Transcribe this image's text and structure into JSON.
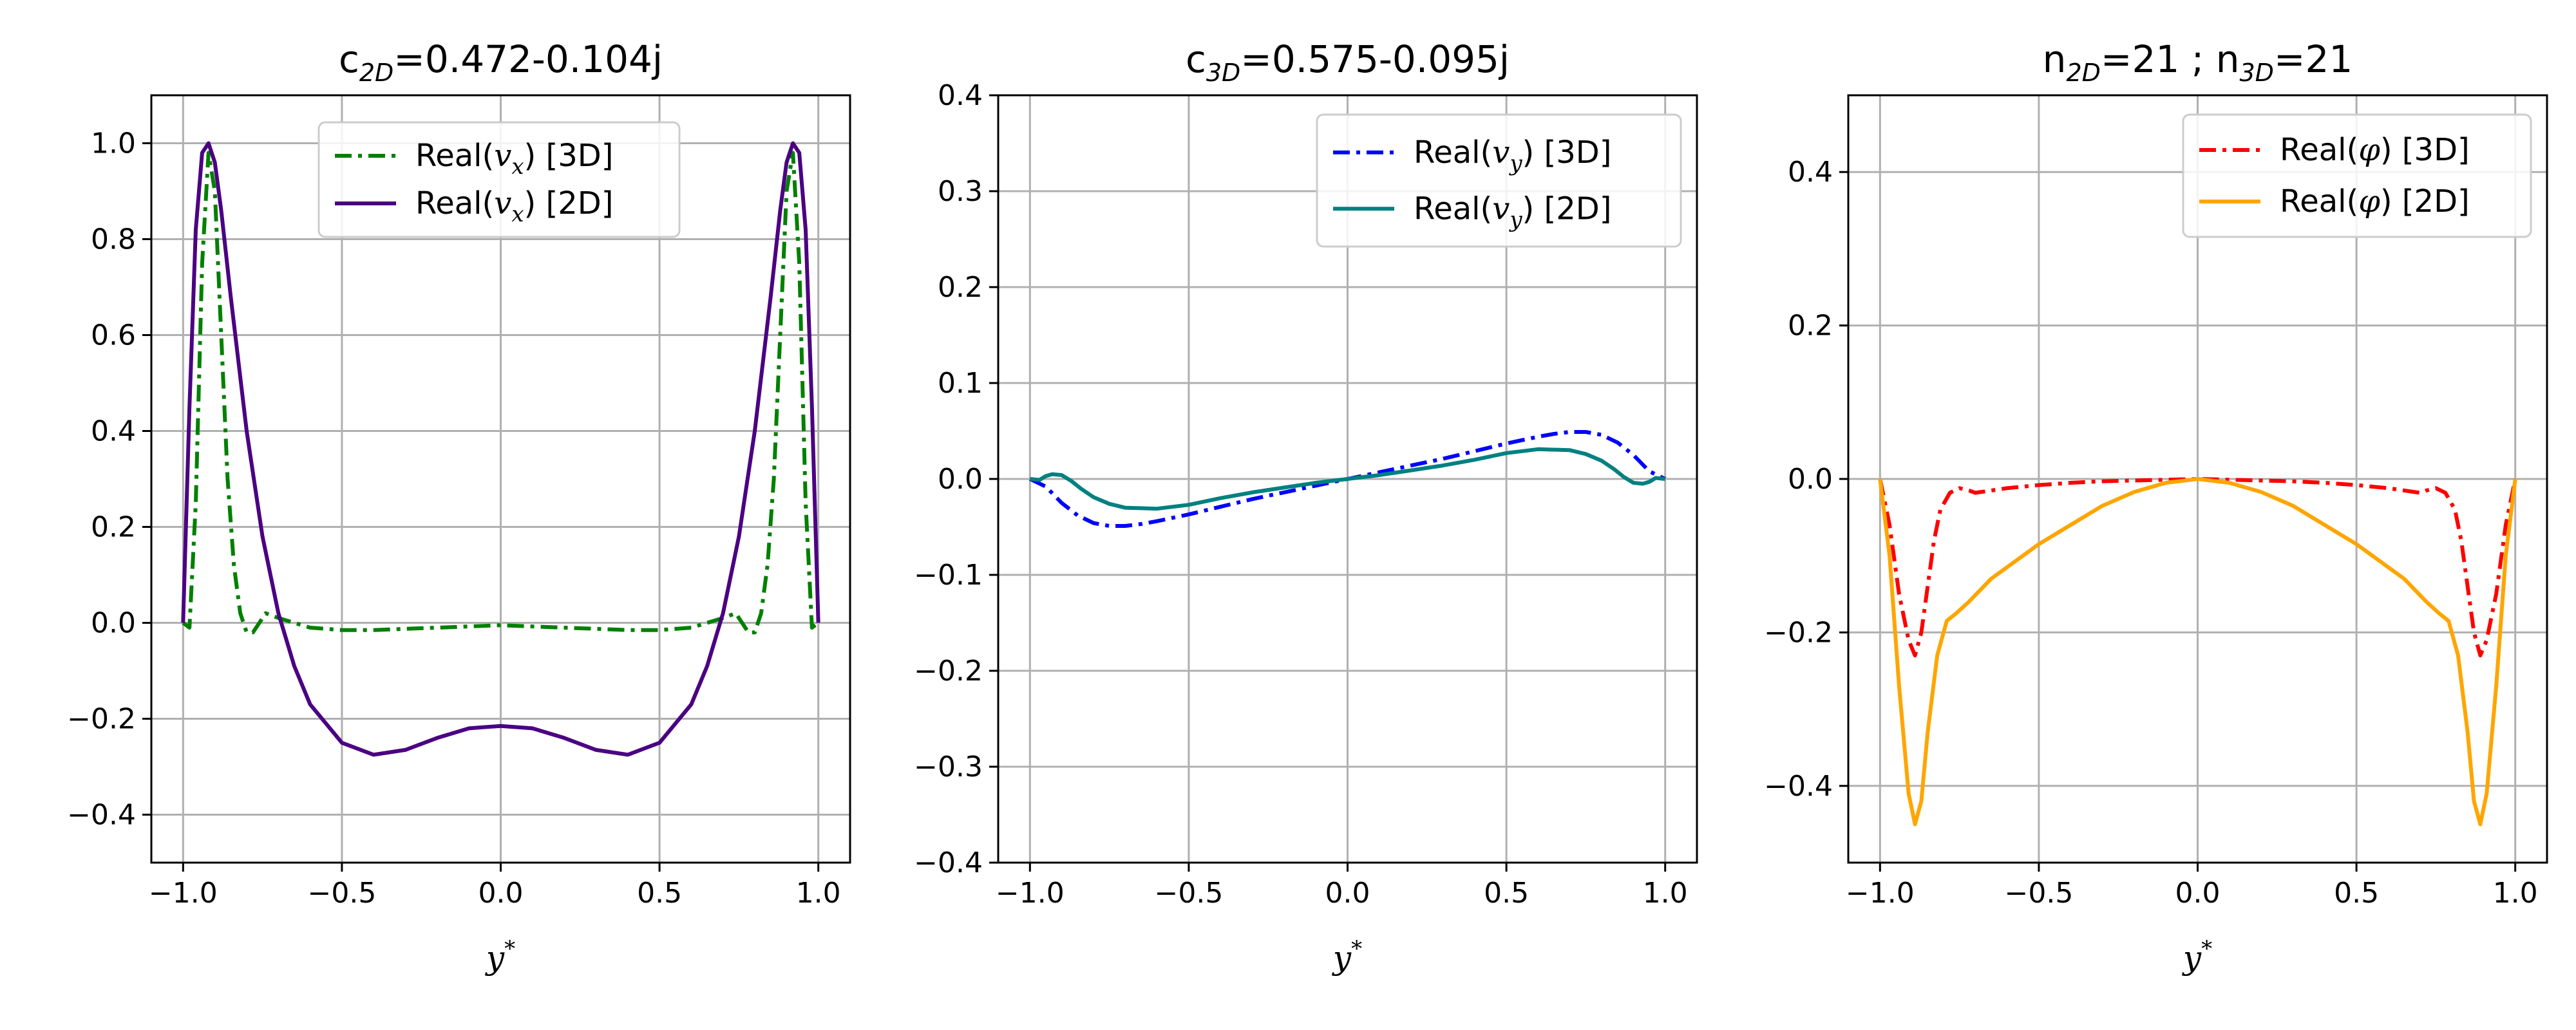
{
  "figure": {
    "background": "#ffffff",
    "grid_color": "#b0b0b0"
  },
  "chart_data": [
    {
      "type": "line",
      "title": {
        "main": "c",
        "sub": "2D",
        "rest": "=0.472-0.104j"
      },
      "xlabel": {
        "main": "y",
        "sup": "*"
      },
      "ylabel": "",
      "xlim": [
        -1.1,
        1.1
      ],
      "ylim": [
        -0.5,
        1.1
      ],
      "xticks": [
        -1.0,
        -0.5,
        0.0,
        0.5,
        1.0
      ],
      "xtick_labels": [
        "−1.0",
        "−0.5",
        "0.0",
        "0.5",
        "1.0"
      ],
      "yticks": [
        -0.4,
        -0.2,
        0.0,
        0.2,
        0.4,
        0.6,
        0.8,
        1.0
      ],
      "ytick_labels": [
        "−0.4",
        "−0.2",
        "0.0",
        "0.2",
        "0.4",
        "0.6",
        "0.8",
        "1.0"
      ],
      "grid": true,
      "legend": "top-center",
      "series": [
        {
          "name": "Real(v̂x) [3D]",
          "legend_base": "Real(",
          "legend_sym": "v",
          "legend_subsym": "x",
          "legend_tail": ") [3D]",
          "color": "#008000",
          "style": "dashdot",
          "x": [
            -1.0,
            -0.98,
            -0.96,
            -0.94,
            -0.92,
            -0.9,
            -0.88,
            -0.86,
            -0.84,
            -0.82,
            -0.8,
            -0.78,
            -0.76,
            -0.74,
            -0.7,
            -0.6,
            -0.5,
            -0.4,
            -0.2,
            0.0,
            0.2,
            0.4,
            0.5,
            0.6,
            0.7,
            0.74,
            0.76,
            0.78,
            0.8,
            0.82,
            0.84,
            0.86,
            0.88,
            0.9,
            0.92,
            0.94,
            0.96,
            0.98,
            1.0
          ],
          "y": [
            0.0,
            -0.01,
            0.25,
            0.75,
            0.98,
            0.9,
            0.6,
            0.3,
            0.12,
            0.02,
            -0.02,
            -0.02,
            0.0,
            0.02,
            0.01,
            -0.01,
            -0.015,
            -0.015,
            -0.01,
            -0.005,
            -0.01,
            -0.015,
            -0.015,
            -0.01,
            0.01,
            0.02,
            0.0,
            -0.02,
            -0.02,
            0.02,
            0.12,
            0.3,
            0.6,
            0.9,
            0.98,
            0.75,
            0.25,
            -0.01,
            0.0
          ]
        },
        {
          "name": "Real(v̂x) [2D]",
          "legend_base": "Real(",
          "legend_sym": "v",
          "legend_subsym": "x",
          "legend_tail": ") [2D]",
          "color": "#4b0082",
          "style": "solid",
          "x": [
            -1.0,
            -0.98,
            -0.96,
            -0.94,
            -0.92,
            -0.9,
            -0.88,
            -0.85,
            -0.8,
            -0.75,
            -0.7,
            -0.65,
            -0.6,
            -0.5,
            -0.4,
            -0.3,
            -0.2,
            -0.1,
            0.0,
            0.1,
            0.2,
            0.3,
            0.4,
            0.5,
            0.6,
            0.65,
            0.7,
            0.75,
            0.8,
            0.85,
            0.88,
            0.9,
            0.92,
            0.94,
            0.96,
            0.98,
            1.0
          ],
          "y": [
            0.0,
            0.45,
            0.82,
            0.98,
            1.0,
            0.96,
            0.86,
            0.68,
            0.4,
            0.18,
            0.02,
            -0.09,
            -0.17,
            -0.25,
            -0.275,
            -0.265,
            -0.24,
            -0.22,
            -0.215,
            -0.22,
            -0.24,
            -0.265,
            -0.275,
            -0.25,
            -0.17,
            -0.09,
            0.02,
            0.18,
            0.4,
            0.68,
            0.86,
            0.96,
            1.0,
            0.98,
            0.82,
            0.45,
            0.0
          ]
        }
      ]
    },
    {
      "type": "line",
      "title": {
        "main": "c",
        "sub": "3D",
        "rest": "=0.575-0.095j"
      },
      "xlabel": {
        "main": "y",
        "sup": "*"
      },
      "ylabel": "",
      "xlim": [
        -1.1,
        1.1
      ],
      "ylim": [
        -0.4,
        0.4
      ],
      "xticks": [
        -1.0,
        -0.5,
        0.0,
        0.5,
        1.0
      ],
      "xtick_labels": [
        "−1.0",
        "−0.5",
        "0.0",
        "0.5",
        "1.0"
      ],
      "yticks": [
        -0.4,
        -0.3,
        -0.2,
        -0.1,
        0.0,
        0.1,
        0.2,
        0.3,
        0.4
      ],
      "ytick_labels": [
        "−0.4",
        "−0.3",
        "−0.2",
        "−0.1",
        "0.0",
        "0.1",
        "0.2",
        "0.3",
        "0.4"
      ],
      "grid": true,
      "legend": "top-right",
      "series": [
        {
          "name": "Real(v̂y) [3D]",
          "legend_base": "Real(",
          "legend_sym": "v",
          "legend_subsym": "y",
          "legend_tail": ") [3D]",
          "color": "#0000ff",
          "style": "dashdot",
          "x": [
            -1.0,
            -0.95,
            -0.9,
            -0.85,
            -0.8,
            -0.75,
            -0.7,
            -0.65,
            -0.6,
            -0.5,
            -0.4,
            -0.3,
            -0.2,
            -0.1,
            0.0,
            0.1,
            0.2,
            0.3,
            0.4,
            0.5,
            0.6,
            0.65,
            0.7,
            0.75,
            0.8,
            0.85,
            0.9,
            0.95,
            1.0
          ],
          "y": [
            0.0,
            -0.008,
            -0.025,
            -0.038,
            -0.046,
            -0.049,
            -0.049,
            -0.047,
            -0.044,
            -0.037,
            -0.029,
            -0.021,
            -0.014,
            -0.007,
            0.0,
            0.007,
            0.014,
            0.021,
            0.029,
            0.037,
            0.044,
            0.047,
            0.049,
            0.049,
            0.046,
            0.038,
            0.025,
            0.008,
            0.0
          ]
        },
        {
          "name": "Real(v̂y) [2D]",
          "legend_base": "Real(",
          "legend_sym": "v",
          "legend_subsym": "y",
          "legend_tail": ") [2D]",
          "color": "#008080",
          "style": "solid",
          "x": [
            -1.0,
            -0.97,
            -0.95,
            -0.93,
            -0.9,
            -0.87,
            -0.84,
            -0.8,
            -0.75,
            -0.7,
            -0.6,
            -0.5,
            -0.4,
            -0.3,
            -0.2,
            -0.1,
            0.0,
            0.1,
            0.2,
            0.3,
            0.4,
            0.5,
            0.6,
            0.7,
            0.75,
            0.8,
            0.84,
            0.87,
            0.9,
            0.93,
            0.95,
            0.97,
            1.0
          ],
          "y": [
            0.0,
            -0.001,
            0.003,
            0.005,
            0.004,
            -0.002,
            -0.01,
            -0.019,
            -0.026,
            -0.03,
            -0.031,
            -0.027,
            -0.02,
            -0.014,
            -0.009,
            -0.004,
            0.0,
            0.004,
            0.009,
            0.014,
            0.02,
            0.027,
            0.031,
            0.03,
            0.026,
            0.019,
            0.01,
            0.002,
            -0.004,
            -0.005,
            -0.003,
            0.001,
            0.0
          ]
        }
      ]
    },
    {
      "type": "line",
      "title": {
        "main": "n",
        "sub": "2D",
        "rest": "=21 ; ",
        "main2": "n",
        "sub2": "3D",
        "rest2": "=21"
      },
      "xlabel": {
        "main": "y",
        "sup": "*"
      },
      "ylabel": "",
      "xlim": [
        -1.1,
        1.1
      ],
      "ylim": [
        -0.5,
        0.5
      ],
      "xticks": [
        -1.0,
        -0.5,
        0.0,
        0.5,
        1.0
      ],
      "xtick_labels": [
        "−1.0",
        "−0.5",
        "0.0",
        "0.5",
        "1.0"
      ],
      "yticks": [
        -0.4,
        -0.2,
        0.0,
        0.2,
        0.4
      ],
      "ytick_labels": [
        "−0.4",
        "−0.2",
        "0.0",
        "0.2",
        "0.4"
      ],
      "grid": true,
      "legend": "top-right",
      "series": [
        {
          "name": "Real(φ̂) [3D]",
          "legend_base": "Real(",
          "legend_sym": "φ",
          "legend_subsym": "",
          "legend_tail": ") [3D]",
          "color": "#ff0000",
          "style": "dashdot",
          "x": [
            -1.0,
            -0.97,
            -0.94,
            -0.91,
            -0.89,
            -0.87,
            -0.85,
            -0.83,
            -0.81,
            -0.78,
            -0.75,
            -0.72,
            -0.7,
            -0.6,
            -0.5,
            -0.4,
            -0.3,
            -0.2,
            -0.1,
            0.0,
            0.1,
            0.2,
            0.3,
            0.4,
            0.5,
            0.6,
            0.7,
            0.72,
            0.75,
            0.78,
            0.81,
            0.83,
            0.85,
            0.87,
            0.89,
            0.91,
            0.94,
            0.97,
            1.0
          ],
          "y": [
            0.0,
            -0.06,
            -0.15,
            -0.21,
            -0.23,
            -0.2,
            -0.14,
            -0.08,
            -0.04,
            -0.018,
            -0.012,
            -0.015,
            -0.018,
            -0.012,
            -0.008,
            -0.005,
            -0.003,
            -0.002,
            -0.001,
            0.0,
            -0.001,
            -0.002,
            -0.003,
            -0.005,
            -0.008,
            -0.012,
            -0.018,
            -0.015,
            -0.012,
            -0.018,
            -0.04,
            -0.08,
            -0.14,
            -0.2,
            -0.23,
            -0.21,
            -0.15,
            -0.06,
            0.0
          ]
        },
        {
          "name": "Real(φ̂) [2D]",
          "legend_base": "Real(",
          "legend_sym": "φ",
          "legend_subsym": "",
          "legend_tail": ") [2D]",
          "color": "#ffa500",
          "style": "solid",
          "x": [
            -1.0,
            -0.97,
            -0.94,
            -0.91,
            -0.89,
            -0.87,
            -0.85,
            -0.82,
            -0.79,
            -0.76,
            -0.72,
            -0.65,
            -0.6,
            -0.5,
            -0.4,
            -0.3,
            -0.2,
            -0.1,
            0.0,
            0.1,
            0.2,
            0.3,
            0.4,
            0.5,
            0.6,
            0.65,
            0.72,
            0.76,
            0.79,
            0.82,
            0.85,
            0.87,
            0.89,
            0.91,
            0.94,
            0.97,
            1.0
          ],
          "y": [
            0.0,
            -0.1,
            -0.27,
            -0.41,
            -0.45,
            -0.42,
            -0.33,
            -0.23,
            -0.185,
            -0.175,
            -0.16,
            -0.13,
            -0.115,
            -0.085,
            -0.06,
            -0.035,
            -0.017,
            -0.005,
            0.0,
            -0.005,
            -0.017,
            -0.035,
            -0.06,
            -0.085,
            -0.115,
            -0.13,
            -0.16,
            -0.175,
            -0.185,
            -0.23,
            -0.33,
            -0.42,
            -0.45,
            -0.41,
            -0.27,
            -0.1,
            0.0
          ]
        }
      ]
    }
  ]
}
